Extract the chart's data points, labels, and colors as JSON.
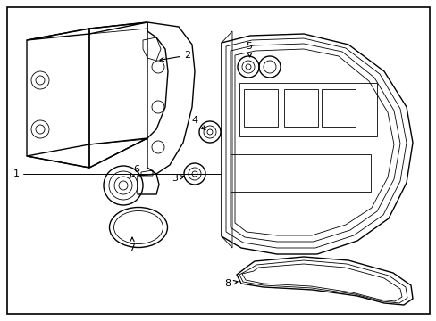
{
  "background_color": "#ffffff",
  "border_color": "#000000",
  "line_color": "#000000",
  "fig_width": 4.89,
  "fig_height": 3.6,
  "dpi": 100
}
